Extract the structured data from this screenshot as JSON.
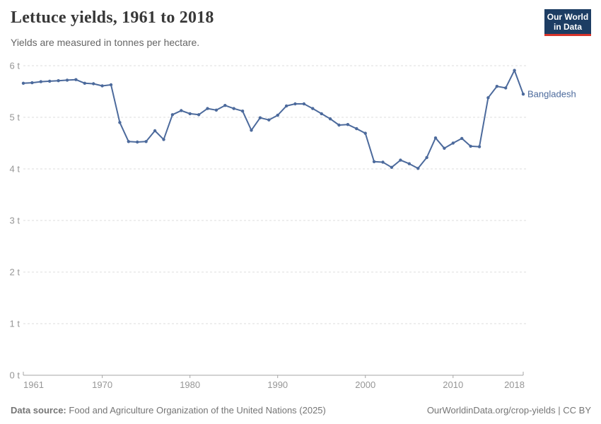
{
  "header": {
    "title": "Lettuce yields, 1961 to 2018",
    "subtitle": "Yields are measured in tonnes per hectare.",
    "logo_line1": "Our World",
    "logo_line2": "in Data"
  },
  "chart_data": {
    "type": "line",
    "title": "Lettuce yields, 1961 to 2018",
    "ylabel": "tonnes per hectare",
    "xlabel": "",
    "xlim": [
      1961,
      2018
    ],
    "ylim": [
      0,
      6
    ],
    "grid": "horizontal-dashed",
    "legend_position": "line-end-label",
    "xticks": [
      1961,
      1970,
      1980,
      1990,
      2000,
      2010,
      2018
    ],
    "ytick_values": [
      0,
      1,
      2,
      3,
      4,
      5,
      6
    ],
    "ytick_labels": [
      "0 t",
      "1 t",
      "2 t",
      "3 t",
      "4 t",
      "5 t",
      "6 t"
    ],
    "series": [
      {
        "name": "Bangladesh",
        "color": "#4C6A9C",
        "x": [
          1961,
          1962,
          1963,
          1964,
          1965,
          1966,
          1967,
          1968,
          1969,
          1970,
          1971,
          1972,
          1973,
          1974,
          1975,
          1976,
          1977,
          1978,
          1979,
          1980,
          1981,
          1982,
          1983,
          1984,
          1985,
          1986,
          1987,
          1988,
          1989,
          1990,
          1991,
          1992,
          1993,
          1994,
          1995,
          1996,
          1997,
          1998,
          1999,
          2000,
          2001,
          2002,
          2003,
          2004,
          2005,
          2006,
          2007,
          2008,
          2009,
          2010,
          2011,
          2012,
          2013,
          2014,
          2015,
          2016,
          2017,
          2018
        ],
        "values": [
          5.66,
          5.67,
          5.69,
          5.7,
          5.71,
          5.72,
          5.73,
          5.66,
          5.65,
          5.61,
          5.63,
          4.9,
          4.53,
          4.52,
          4.53,
          4.74,
          4.57,
          5.05,
          5.13,
          5.07,
          5.05,
          5.17,
          5.14,
          5.23,
          5.17,
          5.12,
          4.75,
          4.99,
          4.95,
          5.04,
          5.22,
          5.26,
          5.26,
          5.17,
          5.07,
          4.97,
          4.85,
          4.86,
          4.78,
          4.69,
          4.14,
          4.13,
          4.03,
          4.17,
          4.1,
          4.01,
          4.22,
          4.6,
          4.4,
          4.5,
          4.59,
          4.44,
          4.43,
          5.38,
          5.6,
          5.57,
          5.91,
          5.45
        ]
      }
    ]
  },
  "footer": {
    "source_label": "Data source:",
    "source_text": "Food and Agriculture Organization of the United Nations (2025)",
    "link_text": "OurWorldinData.org/crop-yields",
    "separator": " | ",
    "license_text": "CC BY"
  },
  "colors": {
    "line": "#4C6A9C",
    "entity_label": "#4C6A9C",
    "grid": "#dcdcdc",
    "axis_line": "#a5a5a5",
    "axis_text": "#969696",
    "logo_bg": "#1d3d63",
    "logo_stripe": "#d7342b"
  }
}
